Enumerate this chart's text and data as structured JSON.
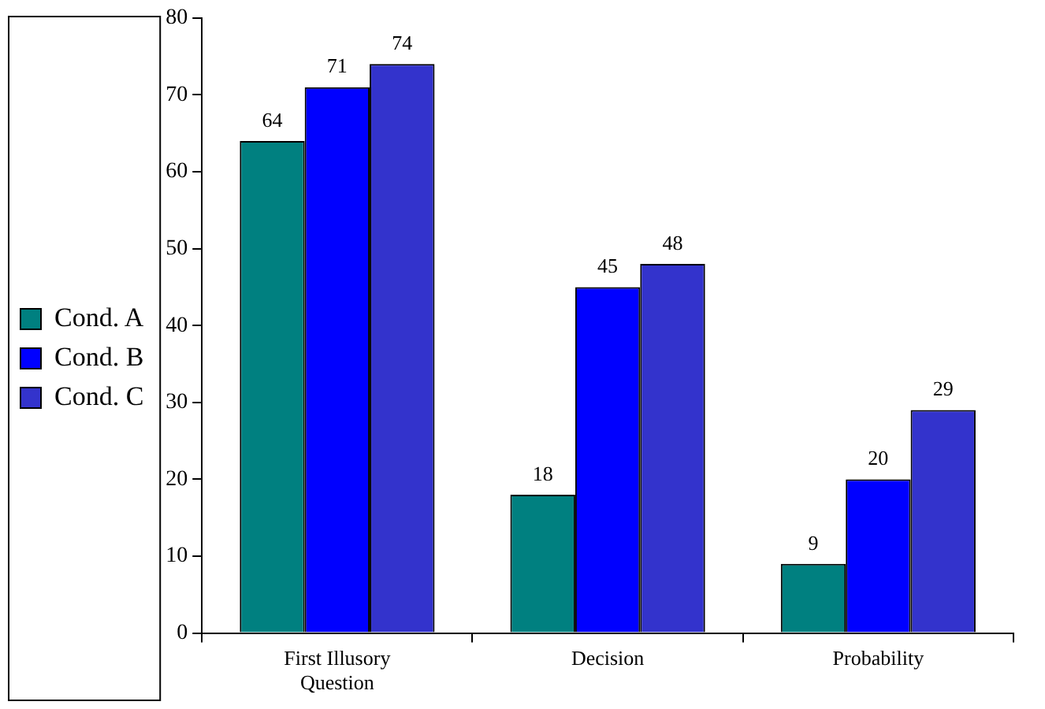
{
  "chart_data": {
    "type": "bar",
    "categories": [
      "First Illusory Question",
      "Decision",
      "Probability"
    ],
    "series": [
      {
        "name": "Cond. A",
        "color": "#008080",
        "values": [
          64,
          18,
          9
        ]
      },
      {
        "name": "Cond. B",
        "color": "#0000ff",
        "values": [
          71,
          45,
          20
        ]
      },
      {
        "name": "Cond. C",
        "color": "#3333cc",
        "values": [
          74,
          48,
          29
        ]
      }
    ],
    "ylim": [
      0,
      80
    ],
    "yticks": [
      0,
      10,
      20,
      30,
      40,
      50,
      60,
      70,
      80
    ],
    "grid": false,
    "legend": "left",
    "data_labels": true
  }
}
